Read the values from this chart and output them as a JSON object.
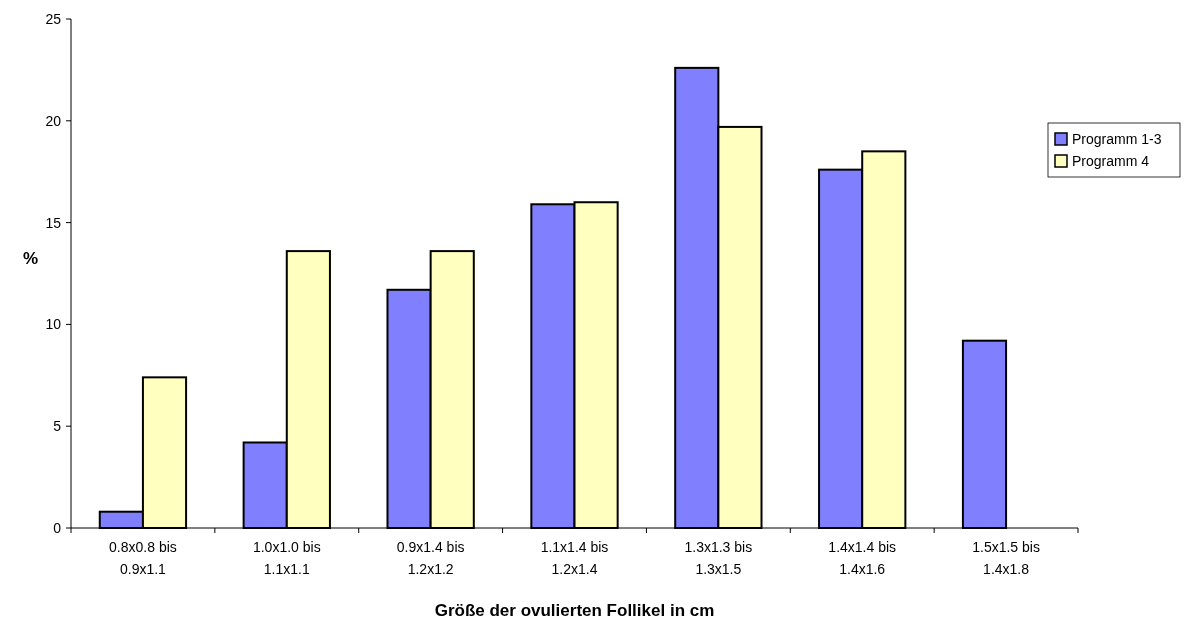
{
  "chart_data": {
    "type": "bar",
    "xlabel": "Größe der ovulierten Follikel in cm",
    "ylabel": "%",
    "categories": [
      "0.8x0.8 bis 0.9x1.1",
      "1.0x1.0 bis 1.1x1.1",
      "0.9x1.4 bis 1.2x1.2",
      "1.1x1.4 bis 1.2x1.4",
      "1.3x1.3 bis 1.3x1.5",
      "1.4x1.4 bis 1.4x1.6",
      "1.5x1.5 bis 1.4x1.8"
    ],
    "series": [
      {
        "name": "Programm 1-3",
        "color": "#8080ff",
        "values": [
          0.8,
          4.2,
          11.7,
          15.9,
          22.6,
          17.6,
          9.2
        ]
      },
      {
        "name": "Programm 4",
        "color": "#ffffc0",
        "values": [
          7.4,
          13.6,
          13.6,
          16.0,
          19.7,
          18.5,
          null
        ]
      }
    ],
    "ylim": [
      0,
      25
    ],
    "yticks": [
      0,
      5,
      10,
      15,
      20,
      25
    ],
    "legend": "right"
  }
}
